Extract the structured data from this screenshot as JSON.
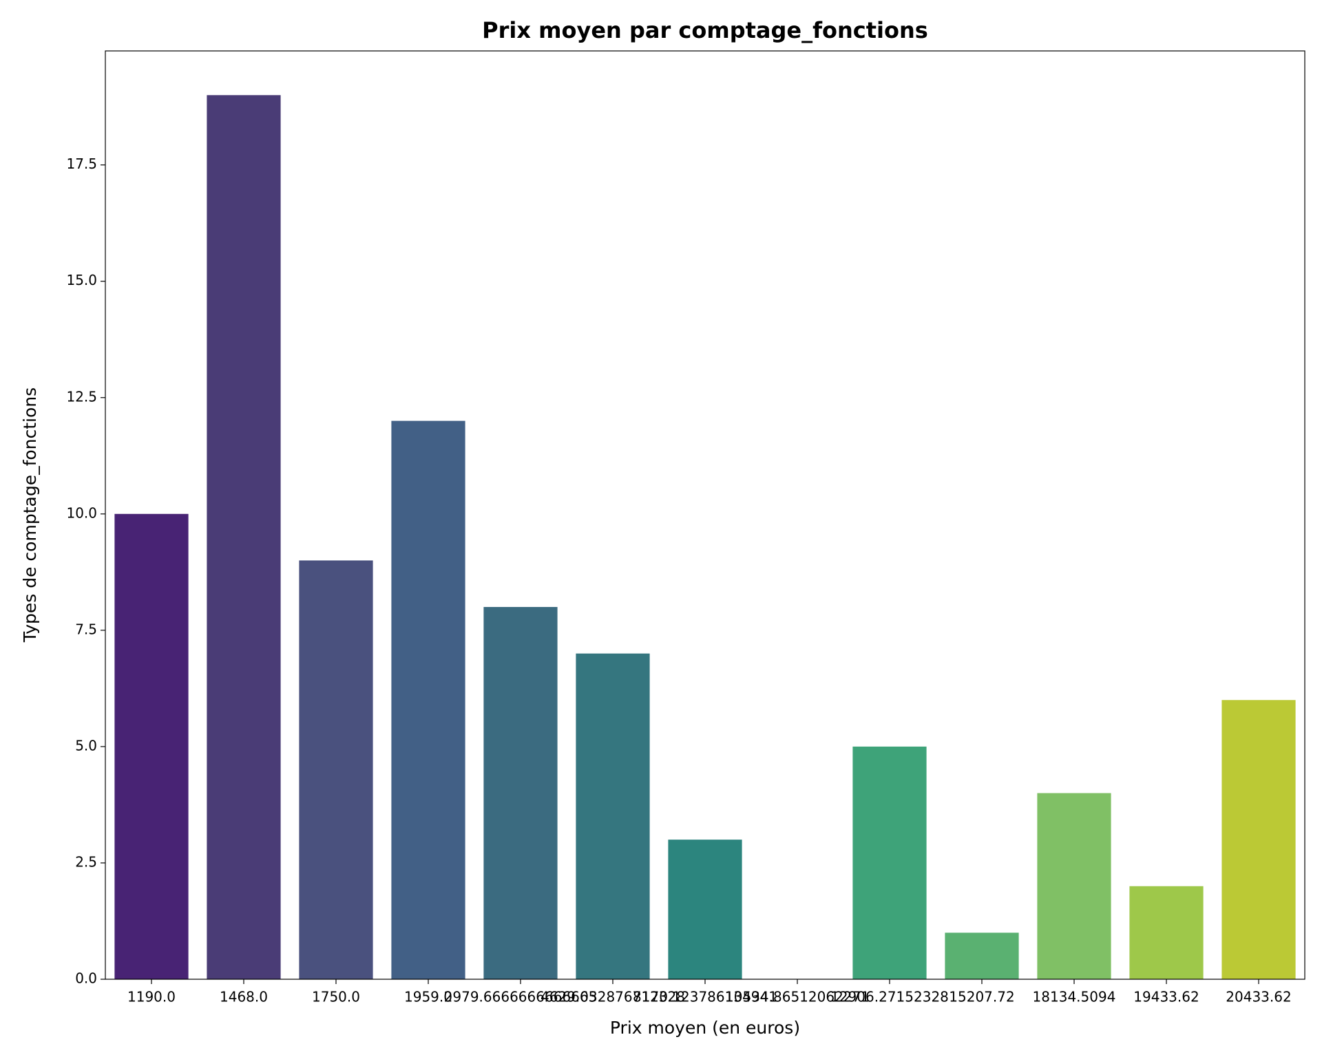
{
  "chart_data": {
    "type": "bar",
    "title": "Prix moyen par comptage_fonctions",
    "x_label": "Prix moyen (en euros)",
    "y_label": "Types de comptage_fonctions",
    "categories": [
      "1190.0",
      "1468.0",
      "1750.0",
      "1959.0",
      "2979.6666666666665",
      "4629.032876712328",
      "8170.123786134941",
      "10534.86512062271",
      "12906.27152328",
      "15207.72",
      "18134.5094",
      "19433.62",
      "20433.62"
    ],
    "values": [
      10,
      19,
      9,
      12,
      8,
      7,
      3,
      0,
      5,
      1,
      4,
      2,
      6
    ],
    "colors": [
      "#482374",
      "#4a3c76",
      "#4a517e",
      "#426086",
      "#3b6b80",
      "#35767f",
      "#2c857e",
      "#26907d",
      "#3ea379",
      "#5ab171",
      "#80c065",
      "#9ec84a",
      "#bbc935"
    ],
    "ylim": [
      0,
      19.95
    ],
    "yticks": [
      {
        "value": 0,
        "label": "0.0"
      },
      2.5,
      {
        "value": 5,
        "label": "5.0"
      },
      7.5,
      {
        "value": 10,
        "label": "10.0"
      },
      12.5,
      {
        "value": 15,
        "label": "15.0"
      },
      17.5
    ]
  }
}
